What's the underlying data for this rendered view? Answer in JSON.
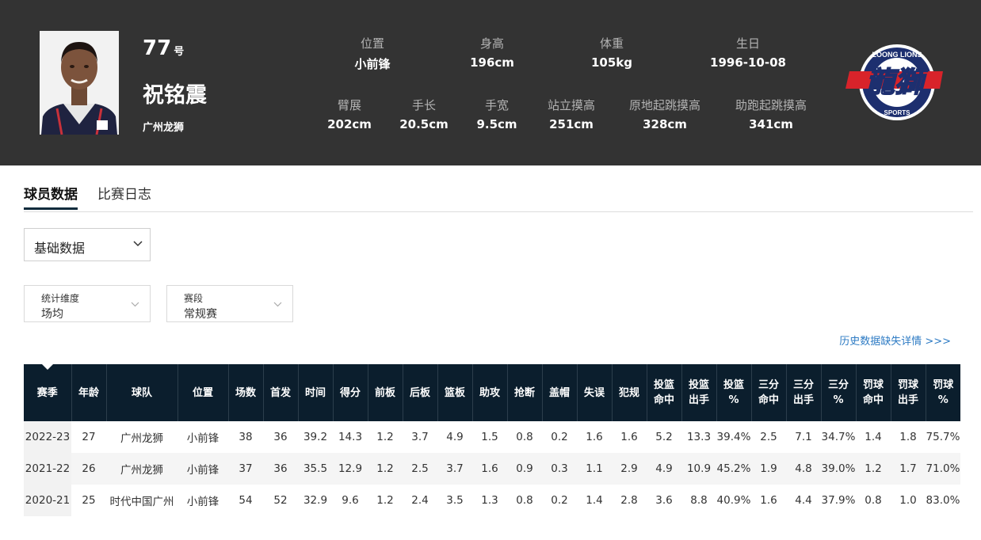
{
  "player": {
    "number": "77",
    "number_suffix": "号",
    "name": "祝铭震",
    "team": "广州龙狮",
    "attributes_row1": [
      {
        "label": "位置",
        "value": "小前锋"
      },
      {
        "label": "身高",
        "value": "196cm"
      },
      {
        "label": "体重",
        "value": "105kg"
      },
      {
        "label": "生日",
        "value": "1996-10-08"
      }
    ],
    "attributes_row2": [
      {
        "label": "臂展",
        "value": "202cm"
      },
      {
        "label": "手长",
        "value": "20.5cm"
      },
      {
        "label": "手宽",
        "value": "9.5cm"
      },
      {
        "label": "站立摸高",
        "value": "251cm"
      },
      {
        "label": "原地起跳摸高",
        "value": "328cm"
      },
      {
        "label": "助跑起跳摸高",
        "value": "341cm"
      }
    ]
  },
  "team_logo": {
    "text_top": "LOONG LIONS",
    "text_main": "龍獅",
    "text_bottom": "SPORTS",
    "colors": {
      "navy": "#1d2f6f",
      "red": "#d8232a",
      "white": "#ffffff"
    }
  },
  "tabs": [
    {
      "label": "球员数据",
      "active": true
    },
    {
      "label": "比赛日志",
      "active": false
    }
  ],
  "data_type_select": {
    "value": "基础数据",
    "icon": "chevron-down-icon"
  },
  "filters": [
    {
      "label": "统计维度",
      "value": "场均",
      "icon": "chevron-down-icon"
    },
    {
      "label": "赛段",
      "value": "常规赛",
      "icon": "chevron-down-icon"
    }
  ],
  "history_link": "历史数据缺失详情 >>>",
  "stats_table": {
    "headers": [
      [
        "赛季"
      ],
      [
        "年龄"
      ],
      [
        "球队"
      ],
      [
        "位置"
      ],
      [
        "场数"
      ],
      [
        "首发"
      ],
      [
        "时间"
      ],
      [
        "得分"
      ],
      [
        "前板"
      ],
      [
        "后板"
      ],
      [
        "篮板"
      ],
      [
        "助攻"
      ],
      [
        "抢断"
      ],
      [
        "盖帽"
      ],
      [
        "失误"
      ],
      [
        "犯规"
      ],
      [
        "投篮",
        "命中"
      ],
      [
        "投篮",
        "出手"
      ],
      [
        "投篮",
        "%"
      ],
      [
        "三分",
        "命中"
      ],
      [
        "三分",
        "出手"
      ],
      [
        "三分",
        "%"
      ],
      [
        "罚球",
        "命中"
      ],
      [
        "罚球",
        "出手"
      ],
      [
        "罚球",
        "%"
      ]
    ],
    "rows": [
      [
        "2022-23",
        "27",
        "广州龙狮",
        "小前锋",
        "38",
        "36",
        "39.2",
        "14.3",
        "1.2",
        "3.7",
        "4.9",
        "1.5",
        "0.8",
        "0.2",
        "1.6",
        "1.6",
        "5.2",
        "13.3",
        "39.4%",
        "2.5",
        "7.1",
        "34.7%",
        "1.4",
        "1.8",
        "75.7%"
      ],
      [
        "2021-22",
        "26",
        "广州龙狮",
        "小前锋",
        "37",
        "36",
        "35.5",
        "12.9",
        "1.2",
        "2.5",
        "3.7",
        "1.6",
        "0.9",
        "0.3",
        "1.1",
        "2.9",
        "4.9",
        "10.9",
        "45.2%",
        "1.9",
        "4.8",
        "39.0%",
        "1.2",
        "1.7",
        "71.0%"
      ],
      [
        "2020-21",
        "25",
        "时代中国广州",
        "小前锋",
        "54",
        "52",
        "32.9",
        "9.6",
        "1.2",
        "2.4",
        "3.5",
        "1.3",
        "0.8",
        "0.2",
        "1.4",
        "2.8",
        "3.6",
        "8.8",
        "40.9%",
        "1.6",
        "4.4",
        "37.9%",
        "0.8",
        "1.0",
        "83.0%"
      ]
    ]
  },
  "colors": {
    "header_bg": "#333333",
    "table_header_bg": "#0b1e2d",
    "link": "#2d7bc4",
    "tab_underline": "#0f2b3c"
  }
}
